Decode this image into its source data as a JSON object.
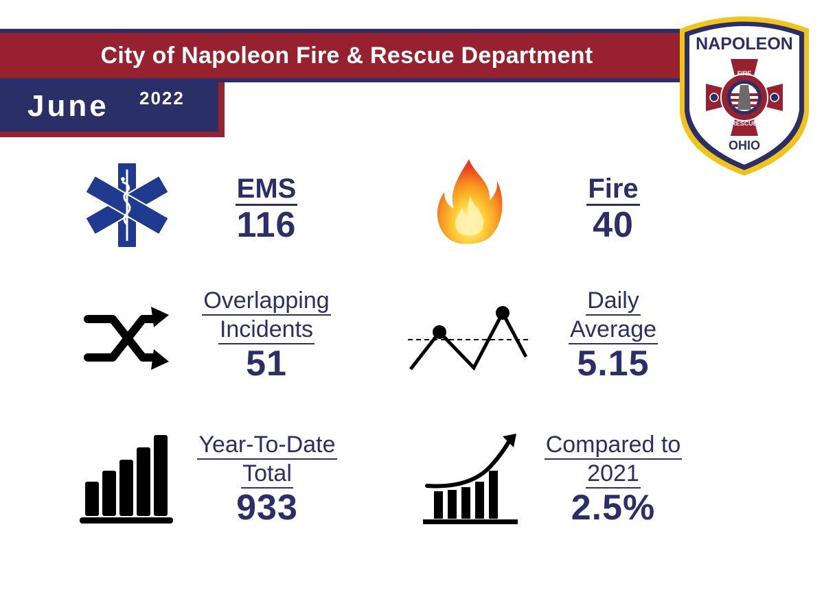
{
  "header": {
    "title": "City of Napoleon Fire & Rescue Department",
    "month": "June",
    "year": "2022"
  },
  "badge": {
    "name": "NAPOLEON",
    "top_text": "FIRE",
    "bottom_text": "RESCUE",
    "state": "OHIO"
  },
  "colors": {
    "navy": "#2a2f68",
    "red": "#98212f",
    "gold": "#f2c318",
    "ems_blue": "#1f3a8e"
  },
  "stats": {
    "ems": {
      "label": "EMS",
      "value": "116",
      "icon": "star-of-life-icon"
    },
    "fire": {
      "label": "Fire",
      "value": "40",
      "icon": "flame-icon"
    },
    "overlapping": {
      "label_line1": "Overlapping",
      "label_line2": "Incidents",
      "value": "51",
      "icon": "shuffle-arrows-icon"
    },
    "daily_average": {
      "label_line1": "Daily",
      "label_line2": "Average",
      "value": "5.15",
      "icon": "line-trend-icon"
    },
    "ytd": {
      "label_line1": "Year-To-Date",
      "label_line2": "Total",
      "value": "933",
      "icon": "bar-chart-icon"
    },
    "compared": {
      "label_line1": "Compared to",
      "label_line2": "2021",
      "value": "2.5%",
      "icon": "growth-chart-icon"
    }
  }
}
